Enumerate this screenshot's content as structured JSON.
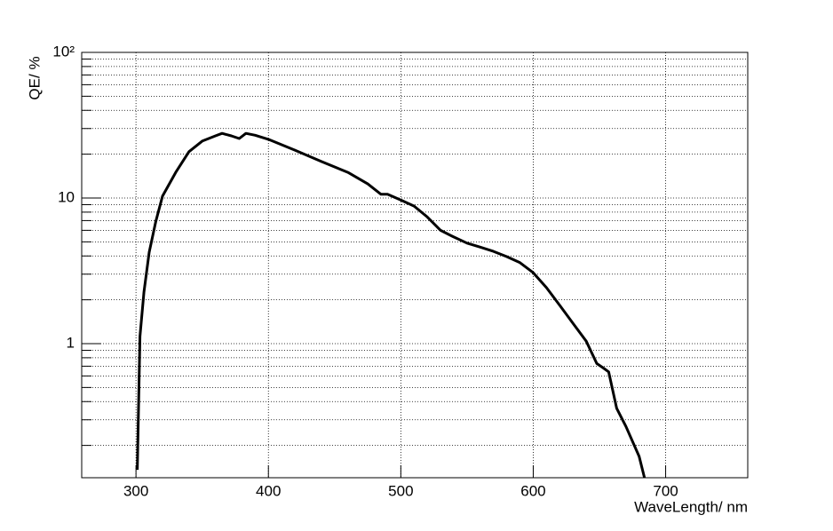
{
  "chart_data": {
    "type": "line",
    "log_y": true,
    "grid": true,
    "x_label": "WaveLength/ nm",
    "y_label": "QE/ %",
    "xlim": [
      259,
      762
    ],
    "xticks": [
      300,
      400,
      500,
      600,
      700
    ],
    "ylim": [
      0.12,
      100
    ],
    "yticks": [
      1,
      10,
      {
        "value": 100,
        "label": "10²"
      }
    ],
    "yminorticks": [
      0.2,
      0.3,
      0.4,
      0.5,
      0.6,
      0.7,
      0.8,
      0.9,
      2,
      3,
      4,
      5,
      6,
      7,
      8,
      9,
      20,
      30,
      40,
      50,
      60,
      70,
      80,
      90
    ],
    "series": [
      {
        "color": "#000000",
        "x": [
          301,
          303,
          306,
          310,
          315,
          320,
          330,
          340,
          350,
          360,
          365,
          372,
          378,
          383,
          390,
          400,
          420,
          440,
          460,
          475,
          485,
          490,
          500,
          510,
          520,
          530,
          540,
          550,
          560,
          570,
          580,
          590,
          600,
          610,
          620,
          630,
          640,
          648,
          653,
          657,
          663,
          670,
          680,
          684
        ],
        "values": [
          0.136,
          1.12,
          2.26,
          4.24,
          6.93,
          10.3,
          15.0,
          20.8,
          24.6,
          26.7,
          27.8,
          26.7,
          25.6,
          27.8,
          27.0,
          25.3,
          21.3,
          17.8,
          15.0,
          12.5,
          10.6,
          10.6,
          9.7,
          8.8,
          7.4,
          6.0,
          5.4,
          4.9,
          4.6,
          4.3,
          3.96,
          3.6,
          3.07,
          2.42,
          1.83,
          1.38,
          1.04,
          0.73,
          0.68,
          0.64,
          0.36,
          0.27,
          0.168,
          0.12
        ]
      }
    ]
  }
}
